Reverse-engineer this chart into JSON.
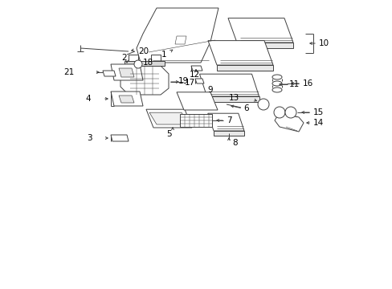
{
  "background_color": "#ffffff",
  "line_color": "#404040",
  "text_color": "#000000",
  "fig_width": 4.89,
  "fig_height": 3.6,
  "dpi": 100,
  "lw": 0.7
}
